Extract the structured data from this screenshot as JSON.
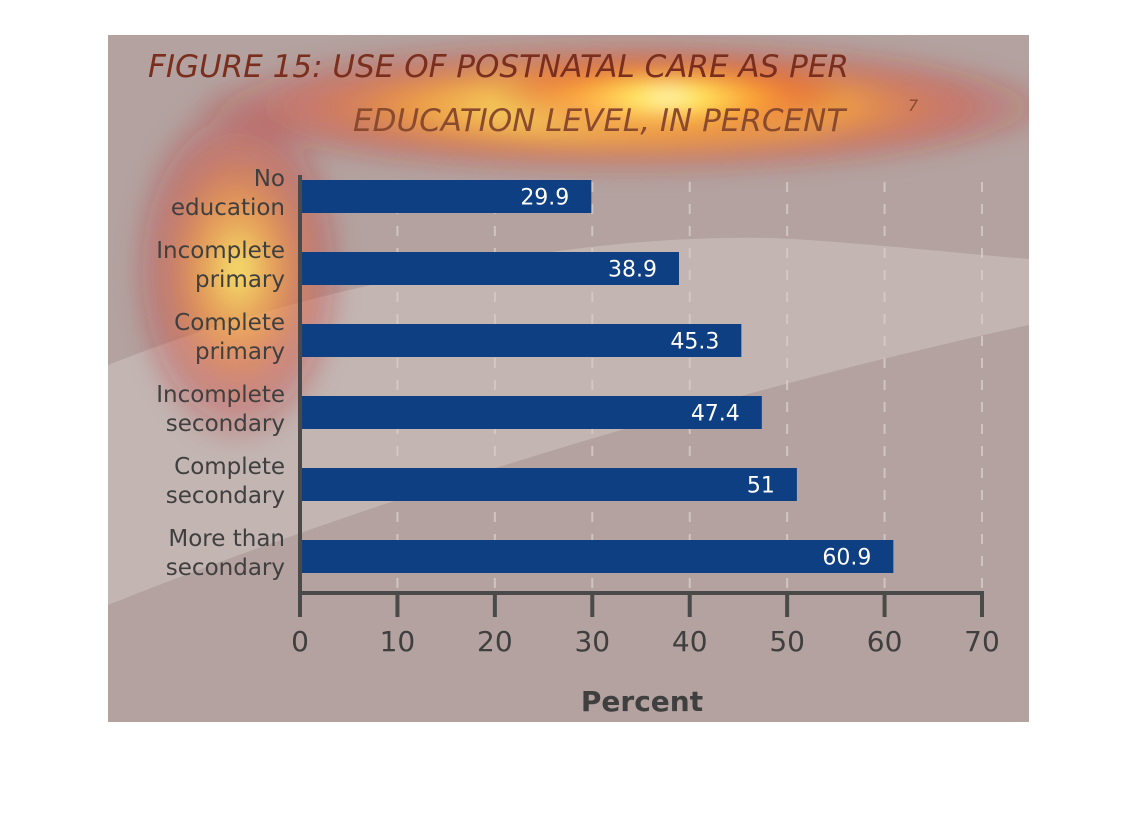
{
  "chart_data": {
    "type": "bar",
    "orientation": "horizontal",
    "title_lines": [
      "FIGURE 15: USE OF POSTNATAL CARE AS PER",
      "EDUCATION LEVEL, IN PERCENT"
    ],
    "title_superscript": "7",
    "categories": [
      [
        "No",
        "education"
      ],
      [
        "Incomplete",
        "primary"
      ],
      [
        "Complete",
        "primary"
      ],
      [
        "Incomplete",
        "secondary"
      ],
      [
        "Complete",
        "secondary"
      ],
      [
        "More than",
        "secondary"
      ]
    ],
    "values": [
      29.9,
      38.9,
      45.3,
      47.4,
      51,
      60.9
    ],
    "value_labels": [
      "29.9",
      "38.9",
      "45.3",
      "47.4",
      "51",
      "60.9"
    ],
    "xlabel": "Percent",
    "ylabel": "",
    "xlim": [
      0,
      70
    ],
    "xticks": [
      "0",
      "10",
      "20",
      "30",
      "40",
      "50",
      "60",
      "70"
    ],
    "grid": "vertical dashed",
    "legend": "none",
    "colors": {
      "bar": "#0e3f82",
      "background": "#b3a29f",
      "title": "#7a2e1e",
      "text": "#3f3f3f",
      "axis": "#4a4a4a"
    }
  }
}
